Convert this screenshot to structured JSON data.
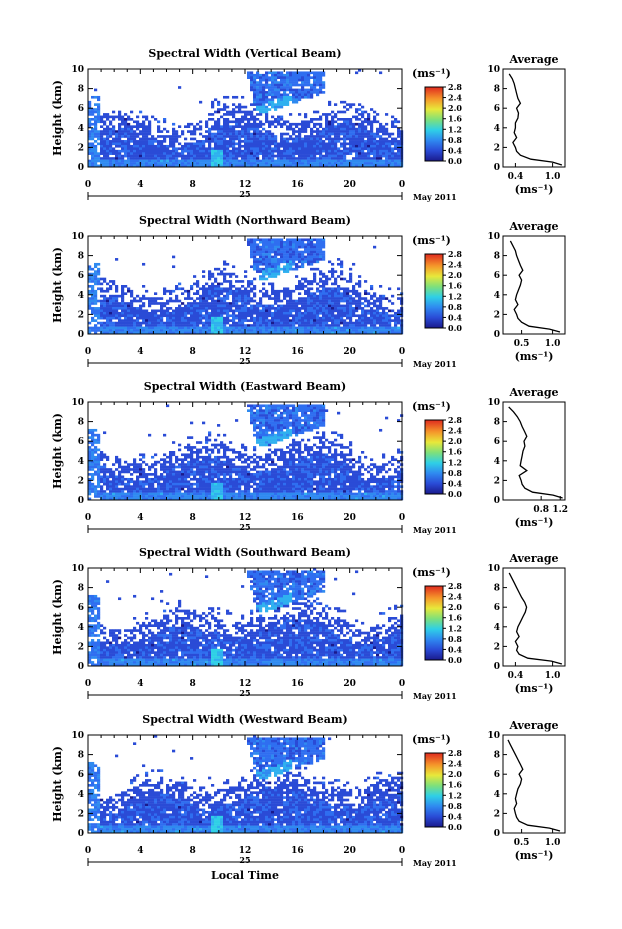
{
  "figure": {
    "xlabel_bottom": "Local Time",
    "avg_title": "Average",
    "cb_unit": "(ms⁻¹)",
    "avg_xlabel": "(ms⁻¹)",
    "month_label": "May 2011",
    "day_label": "25",
    "ylabel": "Height (km)"
  },
  "chart_data": [
    {
      "type": "heatmap",
      "title": "Spectral Width (Vertical Beam)",
      "xlabel": "Local Time",
      "ylabel": "Height (km)",
      "x_ticks": [
        "0",
        "4",
        "8",
        "12",
        "16",
        "20",
        "0"
      ],
      "xlim": [
        0,
        24
      ],
      "y_ticks": [
        "0",
        "2",
        "4",
        "6",
        "8",
        "10"
      ],
      "ylim": [
        0,
        10
      ],
      "colorbar": {
        "unit": "(ms⁻¹)",
        "ticks": [
          "0.0",
          "0.4",
          "0.8",
          "1.2",
          "1.6",
          "2.0",
          "2.4",
          "2.8"
        ],
        "range": [
          0,
          2.8
        ]
      },
      "average_profile": {
        "title": "Average",
        "x_ticks": [
          "0.4",
          "1.0"
        ],
        "xlim": [
          0.2,
          1.2
        ],
        "xlabel": "(ms⁻¹)",
        "height": [
          0.2,
          0.5,
          0.8,
          1.2,
          1.6,
          2.0,
          2.5,
          3.0,
          3.5,
          4.0,
          4.5,
          5.0,
          5.5,
          6.0,
          6.5,
          7.0,
          7.5,
          8.0,
          8.5,
          9.0,
          9.5
        ],
        "value": [
          1.15,
          1.0,
          0.65,
          0.48,
          0.42,
          0.4,
          0.36,
          0.42,
          0.38,
          0.4,
          0.4,
          0.44,
          0.45,
          0.42,
          0.48,
          0.44,
          0.42,
          0.4,
          0.38,
          0.35,
          0.3
        ]
      }
    },
    {
      "type": "heatmap",
      "title": "Spectral Width (Northward Beam)",
      "xlabel": "Local Time",
      "ylabel": "Height (km)",
      "x_ticks": [
        "0",
        "4",
        "8",
        "12",
        "16",
        "20",
        "0"
      ],
      "xlim": [
        0,
        24
      ],
      "y_ticks": [
        "0",
        "2",
        "4",
        "6",
        "8",
        "10"
      ],
      "ylim": [
        0,
        10
      ],
      "colorbar": {
        "unit": "(ms⁻¹)",
        "ticks": [
          "0.0",
          "0.4",
          "0.8",
          "1.2",
          "1.6",
          "2.0",
          "2.4",
          "2.8"
        ],
        "range": [
          0,
          2.8
        ]
      },
      "average_profile": {
        "title": "Average",
        "x_ticks": [
          "0.5",
          "1.0"
        ],
        "xlim": [
          0.2,
          1.2
        ],
        "xlabel": "(ms⁻¹)",
        "height": [
          0.2,
          0.5,
          0.8,
          1.2,
          1.6,
          2.0,
          2.5,
          3.0,
          3.5,
          4.0,
          4.5,
          5.0,
          5.5,
          6.0,
          6.5,
          7.0,
          7.5,
          8.0,
          8.5,
          9.0,
          9.5
        ],
        "value": [
          1.12,
          0.95,
          0.62,
          0.5,
          0.44,
          0.42,
          0.38,
          0.44,
          0.4,
          0.42,
          0.45,
          0.48,
          0.5,
          0.46,
          0.52,
          0.48,
          0.45,
          0.42,
          0.4,
          0.36,
          0.32
        ]
      }
    },
    {
      "type": "heatmap",
      "title": "Spectral Width (Eastward Beam)",
      "xlabel": "Local Time",
      "ylabel": "Height (km)",
      "x_ticks": [
        "0",
        "4",
        "8",
        "12",
        "16",
        "20",
        "0"
      ],
      "xlim": [
        0,
        24
      ],
      "y_ticks": [
        "0",
        "2",
        "4",
        "6",
        "8",
        "10"
      ],
      "ylim": [
        0,
        10
      ],
      "colorbar": {
        "unit": "(ms⁻¹)",
        "ticks": [
          "0.0",
          "0.4",
          "0.8",
          "1.2",
          "1.6",
          "2.0",
          "2.4",
          "2.8"
        ],
        "range": [
          0,
          2.8
        ]
      },
      "average_profile": {
        "title": "Average",
        "x_ticks": [
          "0.8",
          "1.2"
        ],
        "xlim": [
          0.0,
          1.3
        ],
        "xlabel": "(ms⁻¹)",
        "height": [
          0.2,
          0.5,
          0.8,
          1.2,
          1.6,
          2.0,
          2.5,
          3.0,
          3.5,
          4.0,
          4.5,
          5.0,
          5.5,
          6.0,
          6.5,
          7.0,
          7.5,
          8.0,
          8.5,
          9.0,
          9.5
        ],
        "value": [
          1.25,
          1.05,
          0.62,
          0.46,
          0.4,
          0.38,
          0.34,
          0.5,
          0.36,
          0.38,
          0.4,
          0.42,
          0.46,
          0.44,
          0.5,
          0.45,
          0.4,
          0.36,
          0.3,
          0.22,
          0.12
        ]
      }
    },
    {
      "type": "heatmap",
      "title": "Spectral Width (Southward Beam)",
      "xlabel": "Local Time",
      "ylabel": "Height (km)",
      "x_ticks": [
        "0",
        "4",
        "8",
        "12",
        "16",
        "20",
        "0"
      ],
      "xlim": [
        0,
        24
      ],
      "y_ticks": [
        "0",
        "2",
        "4",
        "6",
        "8",
        "10"
      ],
      "ylim": [
        0,
        10
      ],
      "colorbar": {
        "unit": "(ms⁻¹)",
        "ticks": [
          "0.0",
          "0.4",
          "0.8",
          "1.2",
          "1.6",
          "2.0",
          "2.4",
          "2.8"
        ],
        "range": [
          0,
          2.8
        ]
      },
      "average_profile": {
        "title": "Average",
        "x_ticks": [
          "0.4",
          "1.0"
        ],
        "xlim": [
          0.2,
          1.2
        ],
        "xlabel": "(ms⁻¹)",
        "height": [
          0.2,
          0.5,
          0.8,
          1.2,
          1.6,
          2.0,
          2.5,
          3.0,
          3.5,
          4.0,
          4.5,
          5.0,
          5.5,
          6.0,
          6.5,
          7.0,
          7.5,
          8.0,
          8.5,
          9.0,
          9.5
        ],
        "value": [
          1.15,
          0.98,
          0.6,
          0.46,
          0.42,
          0.44,
          0.4,
          0.46,
          0.42,
          0.44,
          0.48,
          0.52,
          0.56,
          0.58,
          0.55,
          0.5,
          0.46,
          0.42,
          0.38,
          0.34,
          0.3
        ]
      }
    },
    {
      "type": "heatmap",
      "title": "Spectral Width (Westward Beam)",
      "xlabel": "Local Time",
      "ylabel": "Height (km)",
      "x_ticks": [
        "0",
        "4",
        "8",
        "12",
        "16",
        "20",
        "0"
      ],
      "xlim": [
        0,
        24
      ],
      "y_ticks": [
        "0",
        "2",
        "4",
        "6",
        "8",
        "10"
      ],
      "ylim": [
        0,
        10
      ],
      "colorbar": {
        "unit": "(ms⁻¹)",
        "ticks": [
          "0.0",
          "0.4",
          "0.8",
          "1.2",
          "1.6",
          "2.0",
          "2.4",
          "2.8"
        ],
        "range": [
          0,
          2.8
        ]
      },
      "average_profile": {
        "title": "Average",
        "x_ticks": [
          "0.5",
          "1.0"
        ],
        "xlim": [
          0.2,
          1.2
        ],
        "xlabel": "(ms⁻¹)",
        "height": [
          0.2,
          0.5,
          0.8,
          1.2,
          1.6,
          2.0,
          2.5,
          3.0,
          3.5,
          4.0,
          4.5,
          5.0,
          5.5,
          6.0,
          6.5,
          7.0,
          7.5,
          8.0,
          8.5,
          9.0,
          9.5
        ],
        "value": [
          1.12,
          0.95,
          0.6,
          0.46,
          0.42,
          0.4,
          0.38,
          0.42,
          0.4,
          0.42,
          0.44,
          0.48,
          0.5,
          0.46,
          0.52,
          0.48,
          0.44,
          0.4,
          0.36,
          0.32,
          0.28
        ]
      }
    }
  ]
}
